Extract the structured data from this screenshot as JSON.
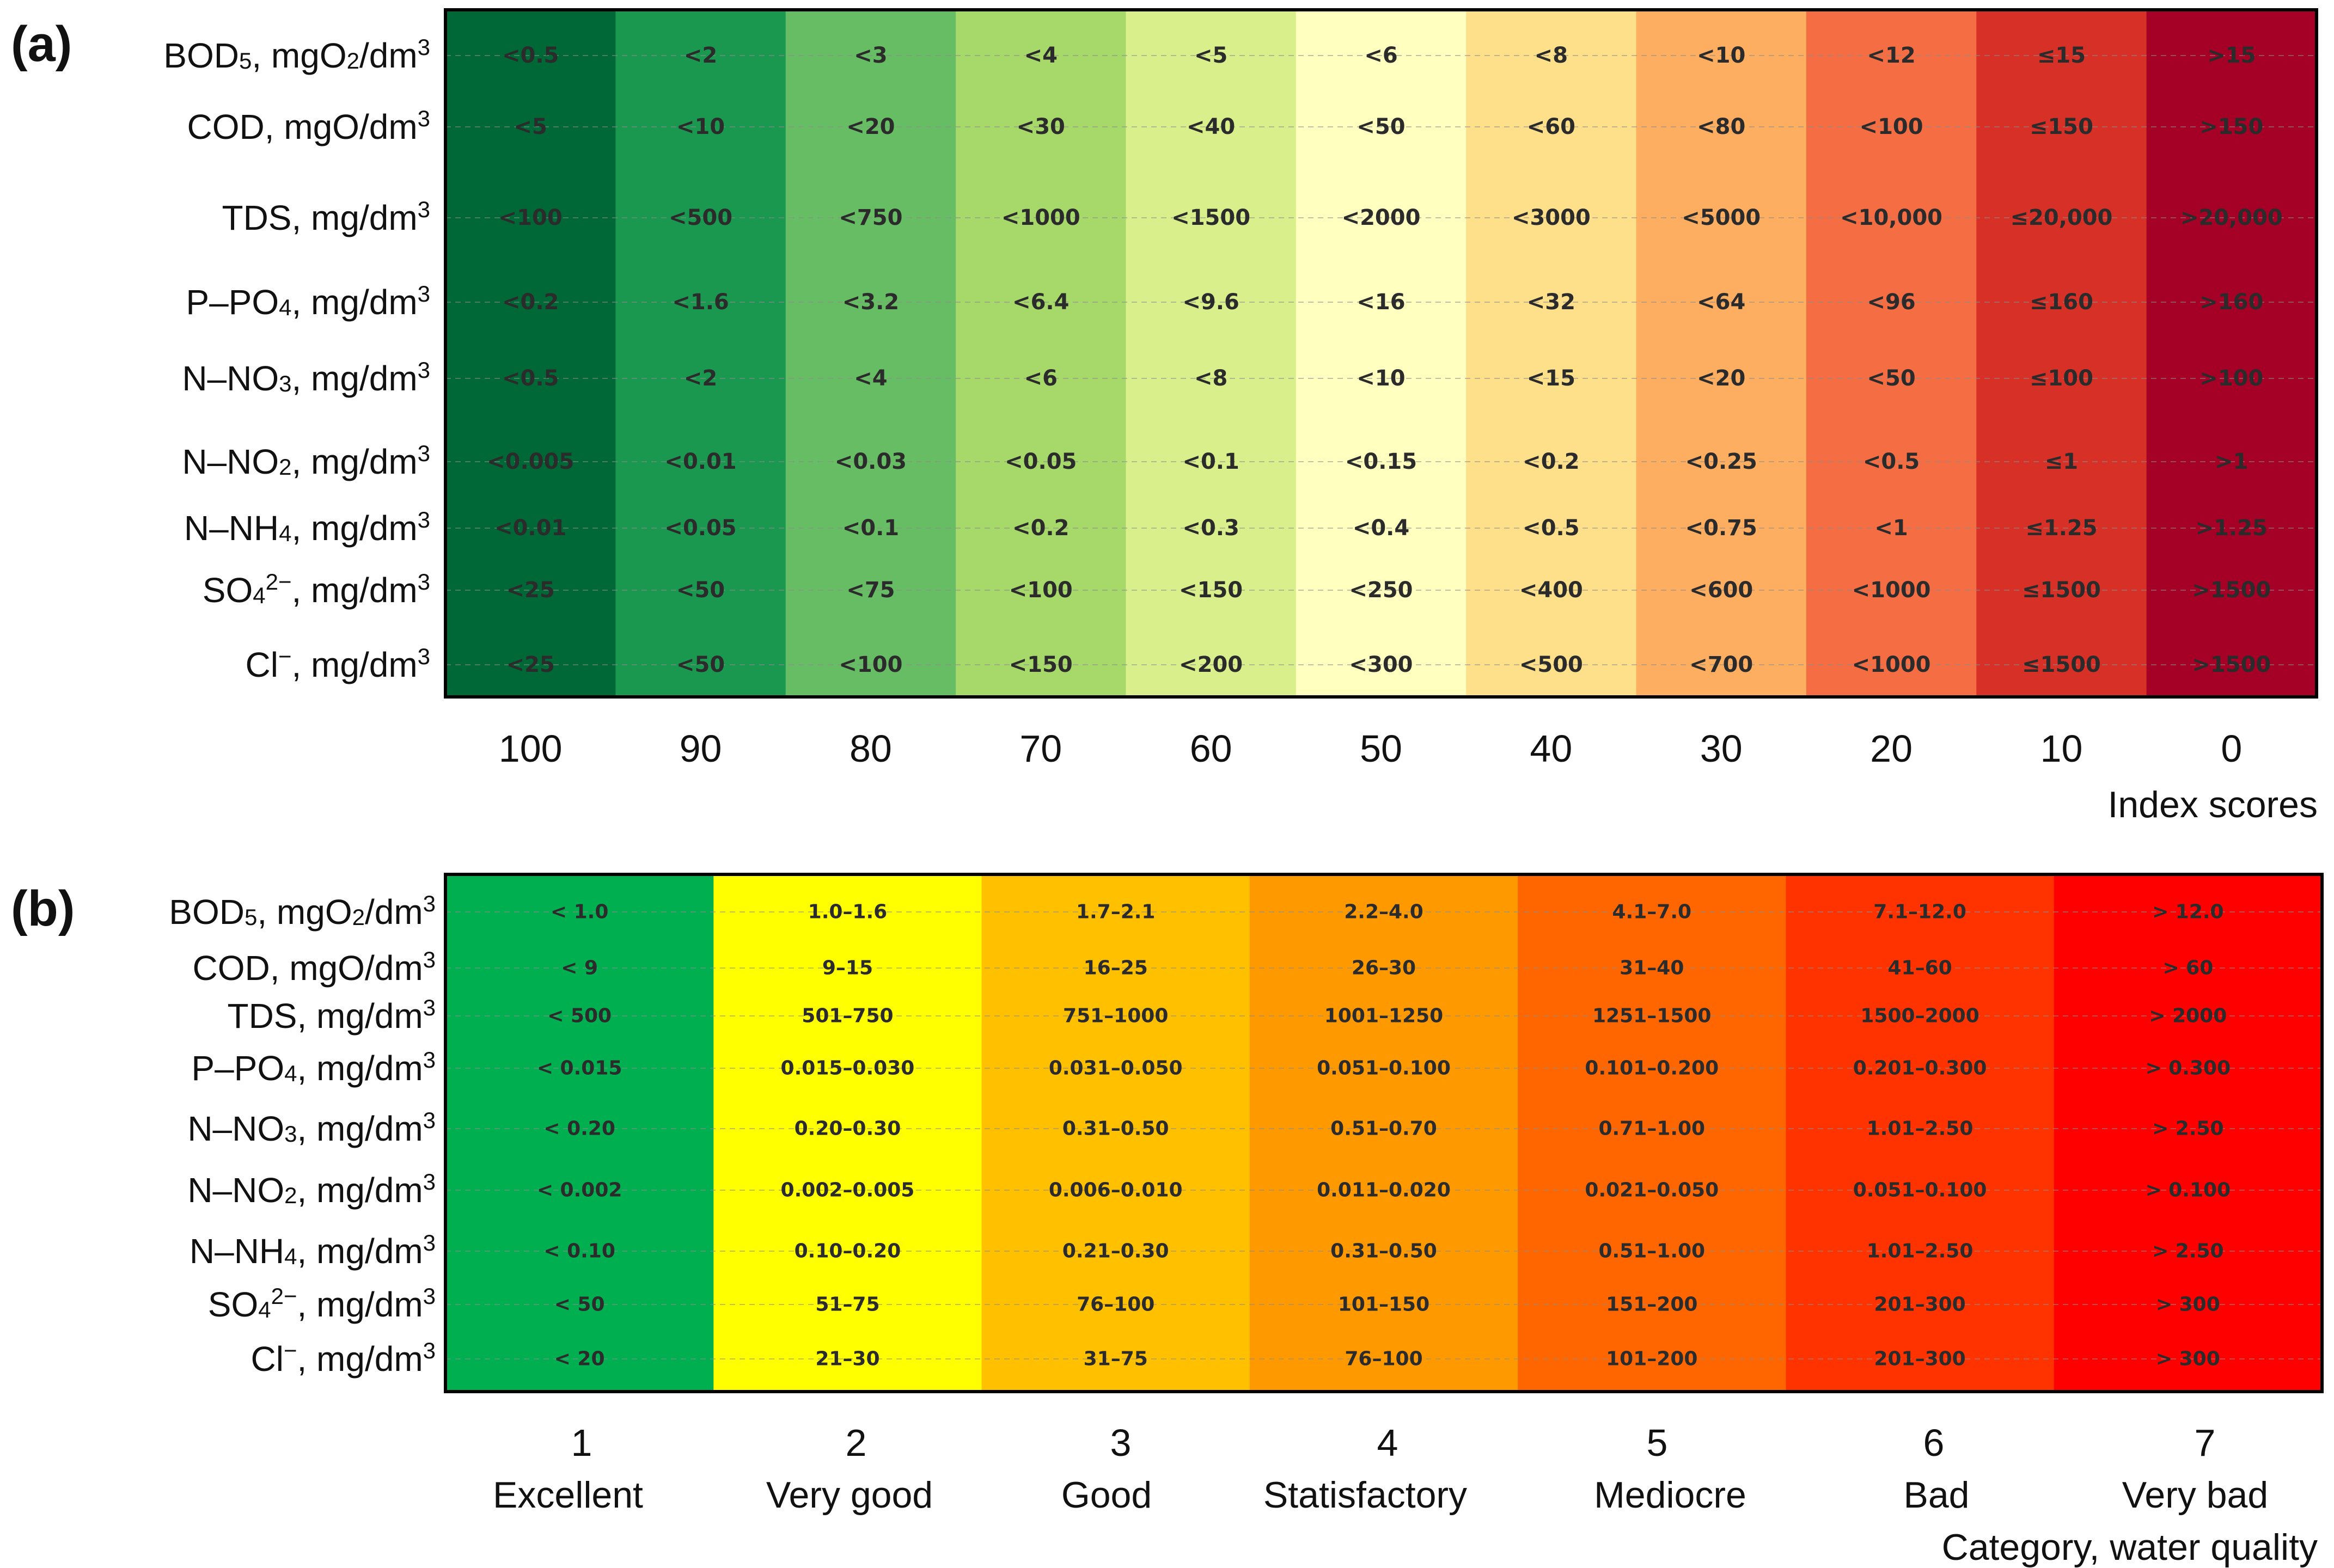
{
  "chart_data": [
    {
      "type": "heatmap",
      "panel_label": "(a)",
      "xlabel": "Index scores",
      "columns": [
        "100",
        "90",
        "80",
        "70",
        "60",
        "50",
        "40",
        "30",
        "20",
        "10",
        "0"
      ],
      "colors": [
        "#006837",
        "#1a9850",
        "#66bd63",
        "#a6d96a",
        "#d9ef8b",
        "#ffffbf",
        "#fee08b",
        "#fdae61",
        "#f46d43",
        "#d73027",
        "#a50026"
      ],
      "rows": [
        {
          "label": "BOD₅, mgO₂/dm³",
          "values": [
            "<0.5",
            "<2",
            "<3",
            "<4",
            "<5",
            "<6",
            "<8",
            "<10",
            "<12",
            "≤15",
            ">15"
          ]
        },
        {
          "label": "COD, mgO/dm³",
          "values": [
            "<5",
            "<10",
            "<20",
            "<30",
            "<40",
            "<50",
            "<60",
            "<80",
            "<100",
            "≤150",
            ">150"
          ]
        },
        {
          "label": "TDS, mg/dm³",
          "values": [
            "<100",
            "<500",
            "<750",
            "<1000",
            "<1500",
            "<2000",
            "<3000",
            "<5000",
            "<10,000",
            "≤20,000",
            ">20,000"
          ]
        },
        {
          "label": "P–PO₄, mg/dm³",
          "values": [
            "<0.2",
            "<1.6",
            "<3.2",
            "<6.4",
            "<9.6",
            "<16",
            "<32",
            "<64",
            "<96",
            "≤160",
            ">160"
          ]
        },
        {
          "label": "N–NO₃, mg/dm³",
          "values": [
            "<0.5",
            "<2",
            "<4",
            "<6",
            "<8",
            "<10",
            "<15",
            "<20",
            "<50",
            "≤100",
            ">100"
          ]
        },
        {
          "label": "N–NO₂, mg/dm³",
          "values": [
            "<0.005",
            "<0.01",
            "<0.03",
            "<0.05",
            "<0.1",
            "<0.15",
            "<0.2",
            "<0.25",
            "<0.5",
            "≤1",
            ">1"
          ]
        },
        {
          "label": "N–NH₄, mg/dm³",
          "values": [
            "<0.01",
            "<0.05",
            "<0.1",
            "<0.2",
            "<0.3",
            "<0.4",
            "<0.5",
            "<0.75",
            "<1",
            "≤1.25",
            ">1.25"
          ]
        },
        {
          "label": "SO₄²⁻, mg/dm³",
          "values": [
            "<25",
            "<50",
            "<75",
            "<100",
            "<150",
            "<250",
            "<400",
            "<600",
            "<1000",
            "≤1500",
            ">1500"
          ]
        },
        {
          "label": "Cl⁻, mg/dm³",
          "values": [
            "<25",
            "<50",
            "<100",
            "<150",
            "<200",
            "<300",
            "<500",
            "<700",
            "<1000",
            "≤1500",
            ">1500"
          ]
        }
      ]
    },
    {
      "type": "heatmap",
      "panel_label": "(b)",
      "xlabel": "Category, water quality",
      "columns": [
        "1",
        "2",
        "3",
        "4",
        "5",
        "6",
        "7"
      ],
      "column_names": [
        "Excellent",
        "Very good",
        "Good",
        "Statisfactory",
        "Mediocre",
        "Bad",
        "Very bad"
      ],
      "colors": [
        "#00b050",
        "#ffff00",
        "#ffc000",
        "#ff9900",
        "#ff6600",
        "#ff3300",
        "#ff0000"
      ],
      "rows": [
        {
          "label": "BOD₅, mgO₂/dm³",
          "values": [
            "< 1.0",
            "1.0–1.6",
            "1.7–2.1",
            "2.2–4.0",
            "4.1–7.0",
            "7.1–12.0",
            "> 12.0"
          ]
        },
        {
          "label": "COD, mgO/dm³",
          "values": [
            "< 9",
            "9–15",
            "16–25",
            "26–30",
            "31–40",
            "41–60",
            "> 60"
          ]
        },
        {
          "label": "TDS, mg/dm³",
          "values": [
            "< 500",
            "501–750",
            "751–1000",
            "1001–1250",
            "1251–1500",
            "1500–2000",
            "> 2000"
          ]
        },
        {
          "label": "P–PO₄, mg/dm³",
          "values": [
            "< 0.015",
            "0.015–0.030",
            "0.031–0.050",
            "0.051–0.100",
            "0.101–0.200",
            "0.201–0.300",
            "> 0.300"
          ]
        },
        {
          "label": "N–NO₃, mg/dm³",
          "values": [
            "< 0.20",
            "0.20–0.30",
            "0.31–0.50",
            "0.51–0.70",
            "0.71–1.00",
            "1.01–2.50",
            "> 2.50"
          ]
        },
        {
          "label": "N–NO₂, mg/dm³",
          "values": [
            "< 0.002",
            "0.002–0.005",
            "0.006–0.010",
            "0.011–0.020",
            "0.021–0.050",
            "0.051–0.100",
            "> 0.100"
          ]
        },
        {
          "label": "N–NH₄, mg/dm³",
          "values": [
            "< 0.10",
            "0.10–0.20",
            "0.21–0.30",
            "0.31–0.50",
            "0.51–1.00",
            "1.01–2.50",
            "> 2.50"
          ]
        },
        {
          "label": "SO₄²⁻, mg/dm³",
          "values": [
            "< 50",
            "51–75",
            "76–100",
            "101–150",
            "151–200",
            "201–300",
            "> 300"
          ]
        },
        {
          "label": "Cl⁻, mg/dm³",
          "values": [
            "< 20",
            "21–30",
            "31–75",
            "76–100",
            "101–200",
            "201–300",
            "> 300"
          ]
        }
      ]
    }
  ]
}
